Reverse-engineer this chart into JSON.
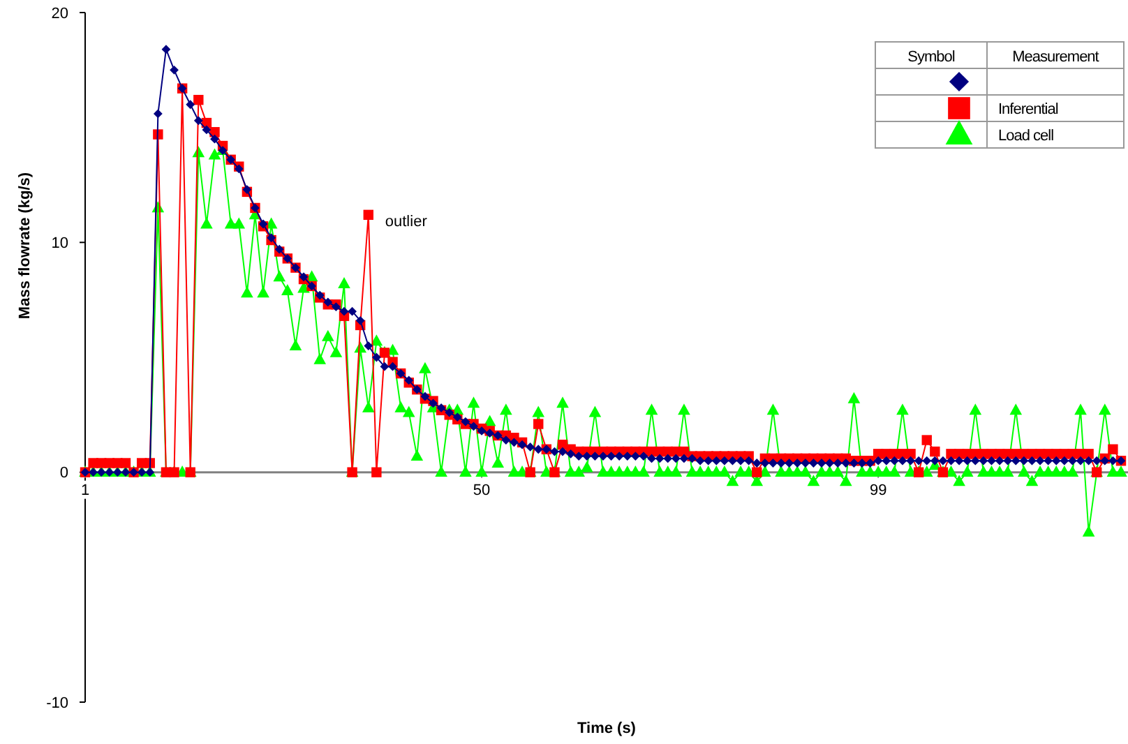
{
  "chart_data": {
    "type": "line",
    "xlabel": "Time (s)",
    "ylabel": "Mass flowrate (kg/s)",
    "categories": [
      "1",
      null,
      null,
      null,
      null,
      null,
      null,
      null,
      null,
      null,
      null,
      null,
      null,
      null,
      null,
      null,
      null,
      null,
      null,
      null,
      null,
      null,
      null,
      null,
      null,
      null,
      null,
      null,
      null,
      null,
      null,
      null,
      null,
      null,
      null,
      null,
      null,
      null,
      null,
      null,
      null,
      null,
      null,
      null,
      null,
      null,
      null,
      null,
      null,
      "50",
      null,
      null,
      null,
      null,
      null,
      null,
      null,
      null,
      null,
      null,
      null,
      null,
      null,
      null,
      null,
      null,
      null,
      null,
      null,
      null,
      null,
      null,
      null,
      null,
      null,
      null,
      null,
      null,
      null,
      null,
      null,
      null,
      null,
      null,
      null,
      null,
      null,
      null,
      null,
      null,
      null,
      null,
      null,
      null,
      null,
      null,
      null,
      null,
      "99",
      null,
      null,
      null,
      null,
      null,
      null,
      null,
      null,
      null,
      null,
      null,
      null,
      null,
      null,
      null,
      null,
      null,
      null,
      null,
      null,
      null,
      null,
      null,
      null,
      null,
      null,
      null,
      null,
      null,
      null
    ],
    "ylim": [
      -10,
      20
    ],
    "yticks": [
      -10,
      0,
      10,
      20
    ],
    "grid": false,
    "legend": "top right",
    "legend_title": "Measurement",
    "annotations": [
      "Symbol",
      "outlier"
    ],
    "series": [
      {
        "color": "#000080",
        "marker": "diamond",
        "values": [
          0,
          0,
          0,
          0,
          0,
          0,
          0,
          0,
          0,
          15.6,
          18.4,
          17.5,
          16.7,
          16.0,
          15.3,
          14.9,
          14.5,
          14.0,
          13.6,
          13.2,
          12.3,
          11.5,
          10.8,
          10.2,
          9.7,
          9.3,
          8.9,
          8.5,
          8.1,
          7.7,
          7.4,
          7.2,
          7.0,
          7.0,
          6.6,
          5.5,
          5.0,
          4.6,
          4.6,
          4.3,
          4.0,
          3.6,
          3.3,
          3.0,
          2.8,
          2.6,
          2.4,
          2.2,
          2.0,
          1.8,
          1.7,
          1.6,
          1.4,
          1.3,
          1.2,
          1.1,
          1.0,
          1.0,
          0.9,
          0.9,
          0.8,
          0.7,
          0.7,
          0.7,
          0.7,
          0.7,
          0.7,
          0.7,
          0.7,
          0.7,
          0.6,
          0.6,
          0.6,
          0.6,
          0.6,
          0.6,
          0.5,
          0.5,
          0.5,
          0.5,
          0.5,
          0.5,
          0.5,
          0.4,
          0.4,
          0.4,
          0.4,
          0.4,
          0.4,
          0.4,
          0.4,
          0.4,
          0.4,
          0.4,
          0.4,
          0.4,
          0.4,
          0.4,
          0.5,
          0.5,
          0.5,
          0.5,
          0.5,
          0.5,
          0.5,
          0.5,
          0.5,
          0.5,
          0.5,
          0.5,
          0.5,
          0.5,
          0.5,
          0.5,
          0.5,
          0.5,
          0.5,
          0.5,
          0.5,
          0.5,
          0.5,
          0.5,
          0.5,
          0.5,
          0.5,
          0.5,
          0.5,
          0.5,
          0.5
        ]
      },
      {
        "name": "Inferential",
        "color": "#ff0000",
        "marker": "square",
        "values": [
          0,
          0.4,
          0.4,
          0.4,
          0.4,
          0.4,
          0,
          0.4,
          0.4,
          14.7,
          0,
          0,
          16.7,
          0,
          16.2,
          15.2,
          14.8,
          14.2,
          13.6,
          13.3,
          12.2,
          11.5,
          10.7,
          10.1,
          9.6,
          9.3,
          8.9,
          8.4,
          8.1,
          7.6,
          7.3,
          7.3,
          6.8,
          0,
          6.4,
          11.2,
          0,
          5.2,
          4.8,
          4.3,
          3.9,
          3.6,
          3.2,
          3.1,
          2.7,
          2.5,
          2.3,
          2.1,
          2.1,
          1.9,
          1.8,
          1.6,
          1.6,
          1.5,
          1.3,
          0,
          2.1,
          1.0,
          0,
          1.2,
          1.0,
          0.9,
          0.9,
          0.9,
          0.9,
          0.9,
          0.9,
          0.9,
          0.9,
          0.9,
          0.9,
          0.9,
          0.9,
          0.9,
          0.9,
          0.7,
          0.7,
          0.7,
          0.7,
          0.7,
          0.7,
          0.7,
          0.7,
          0,
          0.6,
          0.6,
          0.6,
          0.6,
          0.6,
          0.6,
          0.6,
          0.6,
          0.6,
          0.6,
          0.6,
          0.5,
          0.5,
          0.5,
          0.8,
          0.8,
          0.8,
          0.8,
          0.8,
          0,
          1.4,
          0.9,
          0,
          0.8,
          0.8,
          0.8,
          0.8,
          0.8,
          0.8,
          0.8,
          0.8,
          0.8,
          0.8,
          0.8,
          0.8,
          0.8,
          0.8,
          0.8,
          0.8,
          0.8,
          0.8,
          0,
          0.6,
          1.0,
          0.5
        ]
      },
      {
        "name": "Load cell",
        "color": "#00ff00",
        "marker": "triangle",
        "values": [
          0,
          0,
          0,
          0,
          0,
          0,
          0,
          0,
          0,
          11.5,
          0,
          0,
          0,
          0,
          13.9,
          10.8,
          13.8,
          14.0,
          10.8,
          10.8,
          7.8,
          11.2,
          7.8,
          10.8,
          8.5,
          7.9,
          5.5,
          8.0,
          8.5,
          4.9,
          5.9,
          5.2,
          8.2,
          0,
          5.4,
          2.8,
          5.7,
          5.2,
          5.3,
          2.8,
          2.6,
          0.7,
          4.5,
          2.8,
          0,
          2.7,
          2.7,
          0,
          3.0,
          0,
          2.2,
          0.4,
          2.7,
          0,
          0,
          0,
          2.6,
          0,
          0,
          3.0,
          0,
          0,
          0.2,
          2.6,
          0,
          0,
          0,
          0,
          0,
          0,
          2.7,
          0,
          0,
          0,
          2.7,
          0,
          0,
          0,
          0,
          0,
          -0.4,
          0,
          0,
          -0.4,
          0,
          2.7,
          0,
          0,
          0,
          0,
          -0.4,
          0,
          0,
          0,
          -0.4,
          3.2,
          0,
          0,
          0,
          0,
          0,
          2.7,
          0,
          0,
          0,
          0.3,
          0,
          0,
          -0.4,
          0,
          2.7,
          0,
          0,
          0,
          0,
          2.7,
          0,
          -0.4,
          0,
          0,
          0,
          0,
          0,
          2.7,
          -2.6,
          0,
          2.7,
          0,
          0
        ]
      }
    ]
  }
}
